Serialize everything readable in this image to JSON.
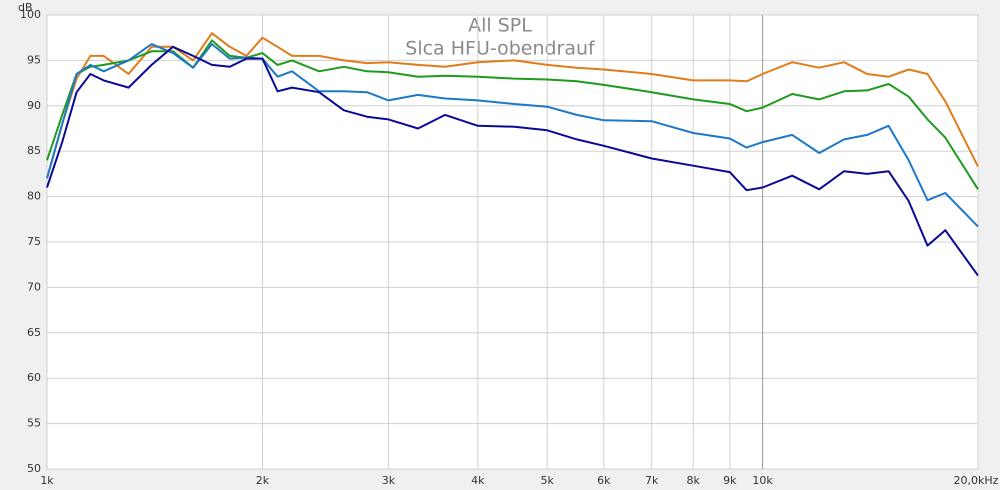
{
  "chart_data": {
    "type": "line",
    "title": "All SPL",
    "subtitle": "Slca HFU-obendrauf",
    "y_label": "dB",
    "xscale": "log",
    "grid": true,
    "xlim": [
      1000,
      20000
    ],
    "xticks": [
      {
        "value": 1000,
        "label": "1k"
      },
      {
        "value": 2000,
        "label": "2k"
      },
      {
        "value": 3000,
        "label": "3k"
      },
      {
        "value": 4000,
        "label": "4k"
      },
      {
        "value": 5000,
        "label": "5k"
      },
      {
        "value": 6000,
        "label": "6k"
      },
      {
        "value": 7000,
        "label": "7k"
      },
      {
        "value": 8000,
        "label": "8k"
      },
      {
        "value": 9000,
        "label": "9k"
      },
      {
        "value": 10000,
        "label": "10k"
      },
      {
        "value": 20000,
        "label": "20,0kHz"
      }
    ],
    "ylim": [
      50,
      100
    ],
    "yticks": [
      50,
      55,
      60,
      65,
      70,
      75,
      80,
      85,
      90,
      95,
      100
    ],
    "x": [
      1000,
      1050,
      1100,
      1150,
      1200,
      1300,
      1400,
      1500,
      1600,
      1700,
      1800,
      1900,
      2000,
      2100,
      2200,
      2400,
      2600,
      2800,
      3000,
      3300,
      3600,
      4000,
      4500,
      5000,
      5500,
      6000,
      7000,
      8000,
      9000,
      9500,
      10000,
      11000,
      12000,
      13000,
      14000,
      15000,
      16000,
      17000,
      18000,
      20000
    ],
    "series": [
      {
        "color": "#e07c1a",
        "values": [
          82,
          88,
          93,
          95.5,
          95.5,
          93.5,
          96.5,
          96.5,
          95,
          98,
          96.5,
          95.5,
          97.5,
          96.5,
          95.5,
          95.5,
          95,
          94.7,
          94.8,
          94.5,
          94.3,
          94.8,
          95,
          94.5,
          94.2,
          94,
          93.5,
          92.8,
          92.8,
          92.7,
          93.5,
          94.8,
          94.2,
          94.8,
          93.5,
          93.2,
          94,
          93.5,
          90.5,
          83.3
        ]
      },
      {
        "color": "#1e9a1e",
        "values": [
          84,
          89,
          93.5,
          94.3,
          94.5,
          95,
          96,
          96,
          94.2,
          97.2,
          95.5,
          95.3,
          95.8,
          94.5,
          95,
          93.8,
          94.3,
          93.8,
          93.7,
          93.2,
          93.3,
          93.2,
          93,
          92.9,
          92.7,
          92.3,
          91.5,
          90.7,
          90.2,
          89.4,
          89.8,
          91.3,
          90.7,
          91.6,
          91.7,
          92.4,
          91,
          88.5,
          86.5,
          80.8
        ]
      },
      {
        "color": "#1e78c8",
        "values": [
          82,
          88,
          93.5,
          94.5,
          93.8,
          95,
          96.8,
          95.8,
          94.2,
          96.8,
          95.2,
          95.3,
          95.2,
          93.2,
          93.8,
          91.6,
          91.6,
          91.5,
          90.6,
          91.2,
          90.8,
          90.6,
          90.2,
          89.9,
          89,
          88.4,
          88.3,
          87,
          86.4,
          85.4,
          86,
          86.8,
          84.8,
          86.3,
          86.8,
          87.8,
          84,
          79.6,
          80.4,
          76.7
        ]
      },
      {
        "color": "#0a0a96",
        "values": [
          81,
          86,
          91.5,
          93.5,
          92.8,
          92,
          94.5,
          96.5,
          95.5,
          94.5,
          94.3,
          95.2,
          95.2,
          91.6,
          92,
          91.5,
          89.5,
          88.8,
          88.5,
          87.5,
          89,
          87.8,
          87.7,
          87.3,
          86.3,
          85.6,
          84.2,
          83.4,
          82.7,
          80.7,
          81,
          82.3,
          80.8,
          82.8,
          82.5,
          82.8,
          79.5,
          74.6,
          76.3,
          71.3
        ]
      }
    ]
  }
}
